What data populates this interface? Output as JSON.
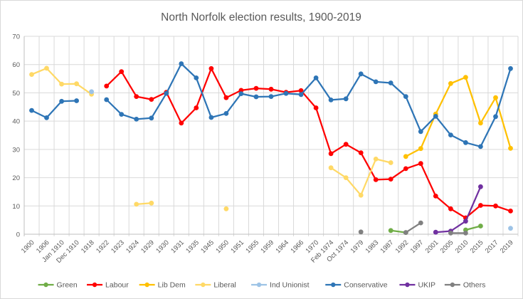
{
  "chart": {
    "title": "North Norfolk election results, 1900-2019"
  },
  "styles": {
    "title_color": "#595959",
    "axis_label_color": "#595959",
    "legend_label_color": "#595959",
    "gridline_color": "#d9d9d9",
    "axis_line_color": "#bfbfbf",
    "background": "#ffffff",
    "frame_border": "#d9d9d9"
  },
  "chart_data": {
    "type": "line",
    "title": "North Norfolk election results, 1900-2019",
    "xlabel": "",
    "ylabel": "",
    "ylim": [
      0,
      70
    ],
    "yticks": [
      0,
      10,
      20,
      30,
      40,
      50,
      60,
      70
    ],
    "grid": true,
    "legend_position": "bottom",
    "categories": [
      "1900",
      "1906",
      "Jan 1910",
      "Dec 1910",
      "1918",
      "1922",
      "1923",
      "1924",
      "1929",
      "1930",
      "1931",
      "1935",
      "1945",
      "1950",
      "1951",
      "1955",
      "1959",
      "1964",
      "1966",
      "1970",
      "Feb 1974",
      "Oct 1974",
      "1979",
      "1983",
      "1987",
      "1992",
      "1997",
      "2001",
      "2005",
      "2010",
      "2015",
      "2017",
      "2019"
    ],
    "series": [
      {
        "name": "Green",
        "color": "#70AD47",
        "points": {
          "1987": 1.3,
          "1992": 0.6,
          "2010": 1.5,
          "2015": 2.9
        }
      },
      {
        "name": "Labour",
        "color": "#FF0000",
        "points": {
          "1922": 52.4,
          "1923": 57.5,
          "1924": 48.7,
          "1929": 47.7,
          "1930": 50.2,
          "1931": 39.3,
          "1935": 44.7,
          "1945": 58.6,
          "1950": 48.3,
          "1951": 50.9,
          "1955": 51.6,
          "1959": 51.3,
          "1964": 50.2,
          "1966": 50.8,
          "1970": 44.7,
          "Feb 1974": 28.5,
          "Oct 1974": 31.8,
          "1979": 28.8,
          "1983": 19.3,
          "1987": 19.5,
          "1992": 23.2,
          "1997": 25.0,
          "2001": 13.5,
          "2005": 9.0,
          "2010": 5.8,
          "2015": 10.2,
          "2017": 10.0,
          "2019": 8.2
        }
      },
      {
        "name": "Lib Dem",
        "color": "#FFC000",
        "points": {
          "1992": 27.5,
          "1997": 30.3,
          "2001": 42.5,
          "2005": 53.3,
          "2010": 55.5,
          "2015": 39.3,
          "2017": 48.3,
          "2019": 30.4
        }
      },
      {
        "name": "Liberal",
        "color": "#FFD966",
        "points": {
          "1900": 56.5,
          "1906": 58.7,
          "Jan 1910": 53.1,
          "Dec 1910": 53.2,
          "1918": 49.5,
          "1924": 10.6,
          "1929": 11.0,
          "1950": 9.0,
          "Feb 1974": 23.5,
          "Oct 1974": 20.0,
          "1979": 13.8,
          "1983": 26.6,
          "1987": 25.3
        }
      },
      {
        "name": "Ind Unionist",
        "color": "#9DC3E6",
        "points": {
          "1918": 50.4,
          "2019": 2.1
        }
      },
      {
        "name": "Conservative",
        "color": "#2E75B6",
        "points": {
          "1900": 43.8,
          "1906": 41.2,
          "Jan 1910": 47.0,
          "Dec 1910": 47.2,
          "1922": 47.6,
          "1923": 42.4,
          "1924": 40.7,
          "1929": 41.1,
          "1930": 49.8,
          "1931": 60.3,
          "1935": 55.3,
          "1945": 41.3,
          "1950": 42.7,
          "1951": 49.7,
          "1955": 48.6,
          "1959": 48.7,
          "1964": 49.8,
          "1966": 49.4,
          "1970": 55.3,
          "Feb 1974": 47.5,
          "Oct 1974": 47.9,
          "1979": 56.7,
          "1983": 53.9,
          "1987": 53.5,
          "1992": 48.7,
          "1997": 36.3,
          "2001": 41.7,
          "2005": 35.1,
          "2010": 32.4,
          "2015": 31.0,
          "2017": 41.6,
          "2019": 58.6
        }
      },
      {
        "name": "UKIP",
        "color": "#7030A0",
        "points": {
          "2001": 0.7,
          "2005": 1.1,
          "2010": 4.6,
          "2015": 16.8
        }
      },
      {
        "name": "Others",
        "color": "#808080",
        "points": {
          "1979": 0.8,
          "1992": 0.6,
          "1997": 4.0,
          "2005": 0.4,
          "2010": 0.4
        }
      }
    ]
  }
}
